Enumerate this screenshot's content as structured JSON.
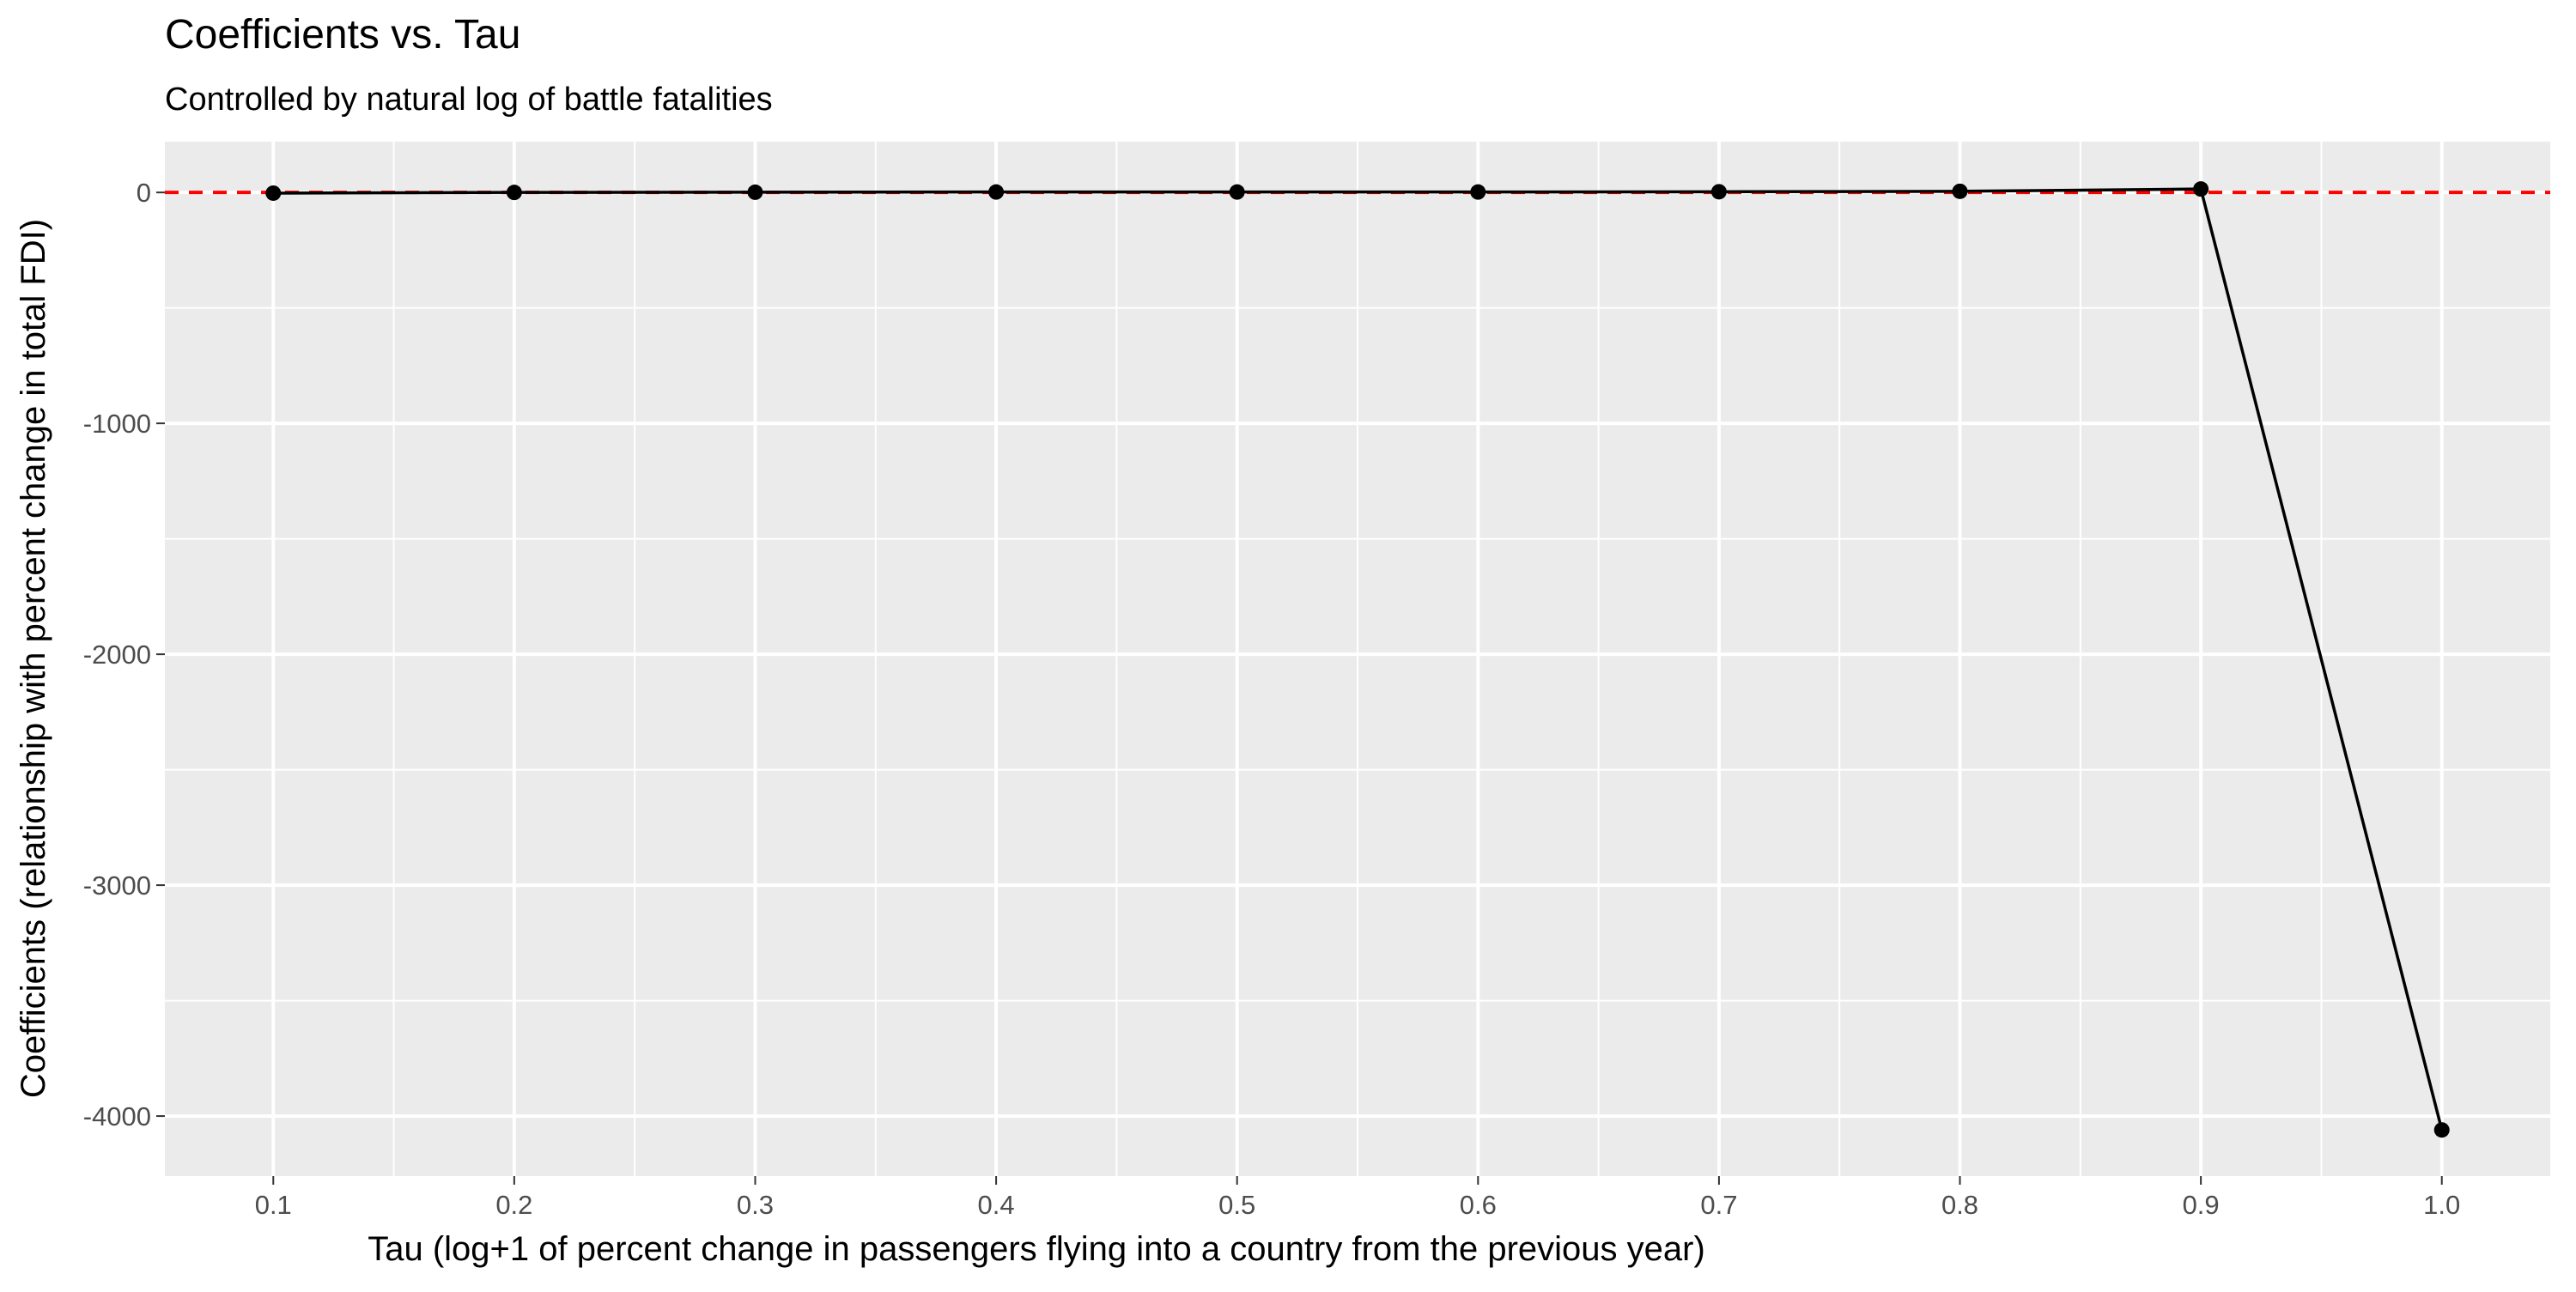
{
  "chart_data": {
    "type": "line",
    "title": "Coefficients vs. Tau",
    "subtitle": "Controlled by natural log of battle fatalities",
    "xlabel": "Tau (log+1 of percent change in passengers flying into a country from the previous year)",
    "ylabel": "Coefficients (relationship with percent change in total FDI)",
    "x": [
      0.1,
      0.2,
      0.3,
      0.4,
      0.5,
      0.6,
      0.7,
      0.8,
      0.9,
      1.0
    ],
    "series": [
      {
        "values": [
          -3,
          0,
          1,
          2,
          2,
          2,
          3,
          5,
          15,
          -4060
        ],
        "color": "#000000"
      }
    ],
    "reference_line": {
      "y": 0,
      "color": "#ff0000",
      "style": "dashed"
    },
    "xlim": [
      0.055,
      1.045
    ],
    "ylim": [
      -4260,
      220
    ],
    "xticks": [
      0.1,
      0.2,
      0.3,
      0.4,
      0.5,
      0.6,
      0.7,
      0.8,
      0.9,
      1.0
    ],
    "xtick_labels": [
      "0.1",
      "0.2",
      "0.3",
      "0.4",
      "0.5",
      "0.6",
      "0.7",
      "0.8",
      "0.9",
      "1.0"
    ],
    "yticks": [
      0,
      -1000,
      -2000,
      -3000,
      -4000
    ],
    "ytick_labels": [
      "0",
      "-1000",
      "-2000",
      "-3000",
      "-4000"
    ],
    "grid": true,
    "panel_background": "#ebebeb",
    "grid_color": "#ffffff",
    "legend": "none"
  }
}
